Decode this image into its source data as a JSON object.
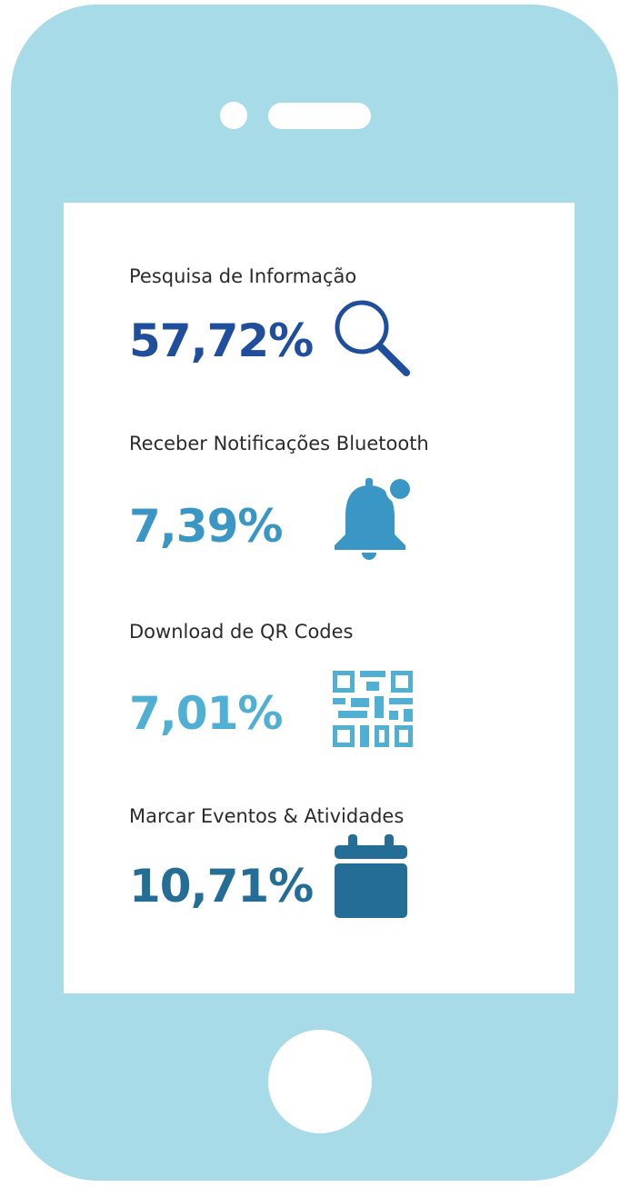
{
  "items": [
    {
      "label": "Pesquisa de Informação",
      "value": "57,72%"
    },
    {
      "label": "Receber Notificações Bluetooth",
      "value": "7,39%"
    },
    {
      "label": "Download de QR Codes",
      "value": "7,01%"
    },
    {
      "label": "Marcar Eventos & Atividades",
      "value": "10,71%"
    }
  ]
}
